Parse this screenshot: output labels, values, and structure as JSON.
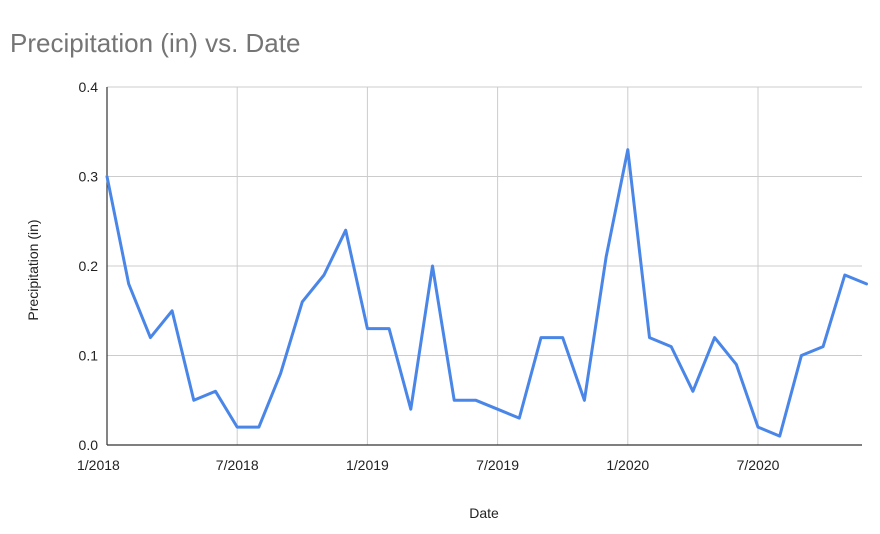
{
  "chart_data": {
    "type": "line",
    "title": "Precipitation (in) vs. Date",
    "xlabel": "Date",
    "ylabel": "Precipitation (in)",
    "xlim": [
      "2018-01",
      "2020-10"
    ],
    "ylim": [
      0,
      0.4
    ],
    "x_ticks": [
      "1/2018",
      "7/2018",
      "1/2019",
      "7/2019",
      "1/2020",
      "7/2020"
    ],
    "y_ticks": [
      "0.0",
      "0.1",
      "0.2",
      "0.3",
      "0.4"
    ],
    "grid": true,
    "legend": "none",
    "colors": {
      "line": "#4a86e8",
      "grid": "#cccccc",
      "axis": "#333333",
      "title": "#757575",
      "text": "#222222"
    },
    "x": [
      "2018-01",
      "2018-02",
      "2018-03",
      "2018-04",
      "2018-05",
      "2018-06",
      "2018-07",
      "2018-08",
      "2018-09",
      "2018-10",
      "2018-11",
      "2018-12",
      "2019-01",
      "2019-02",
      "2019-03",
      "2019-04",
      "2019-05",
      "2019-06",
      "2019-07",
      "2019-08",
      "2019-09",
      "2019-10",
      "2019-11",
      "2019-12",
      "2020-01",
      "2020-02",
      "2020-03",
      "2020-04",
      "2020-05",
      "2020-06",
      "2020-07",
      "2020-08",
      "2020-09",
      "2020-10",
      "2020-11",
      "2020-12"
    ],
    "values": [
      0.3,
      0.18,
      0.12,
      0.15,
      0.05,
      0.06,
      0.02,
      0.02,
      0.08,
      0.16,
      0.19,
      0.24,
      0.13,
      0.13,
      0.04,
      0.2,
      0.05,
      0.05,
      0.04,
      0.03,
      0.12,
      0.12,
      0.05,
      0.21,
      0.33,
      0.12,
      0.11,
      0.06,
      0.12,
      0.09,
      0.02,
      0.01,
      0.1,
      0.11,
      0.19,
      0.18
    ]
  }
}
